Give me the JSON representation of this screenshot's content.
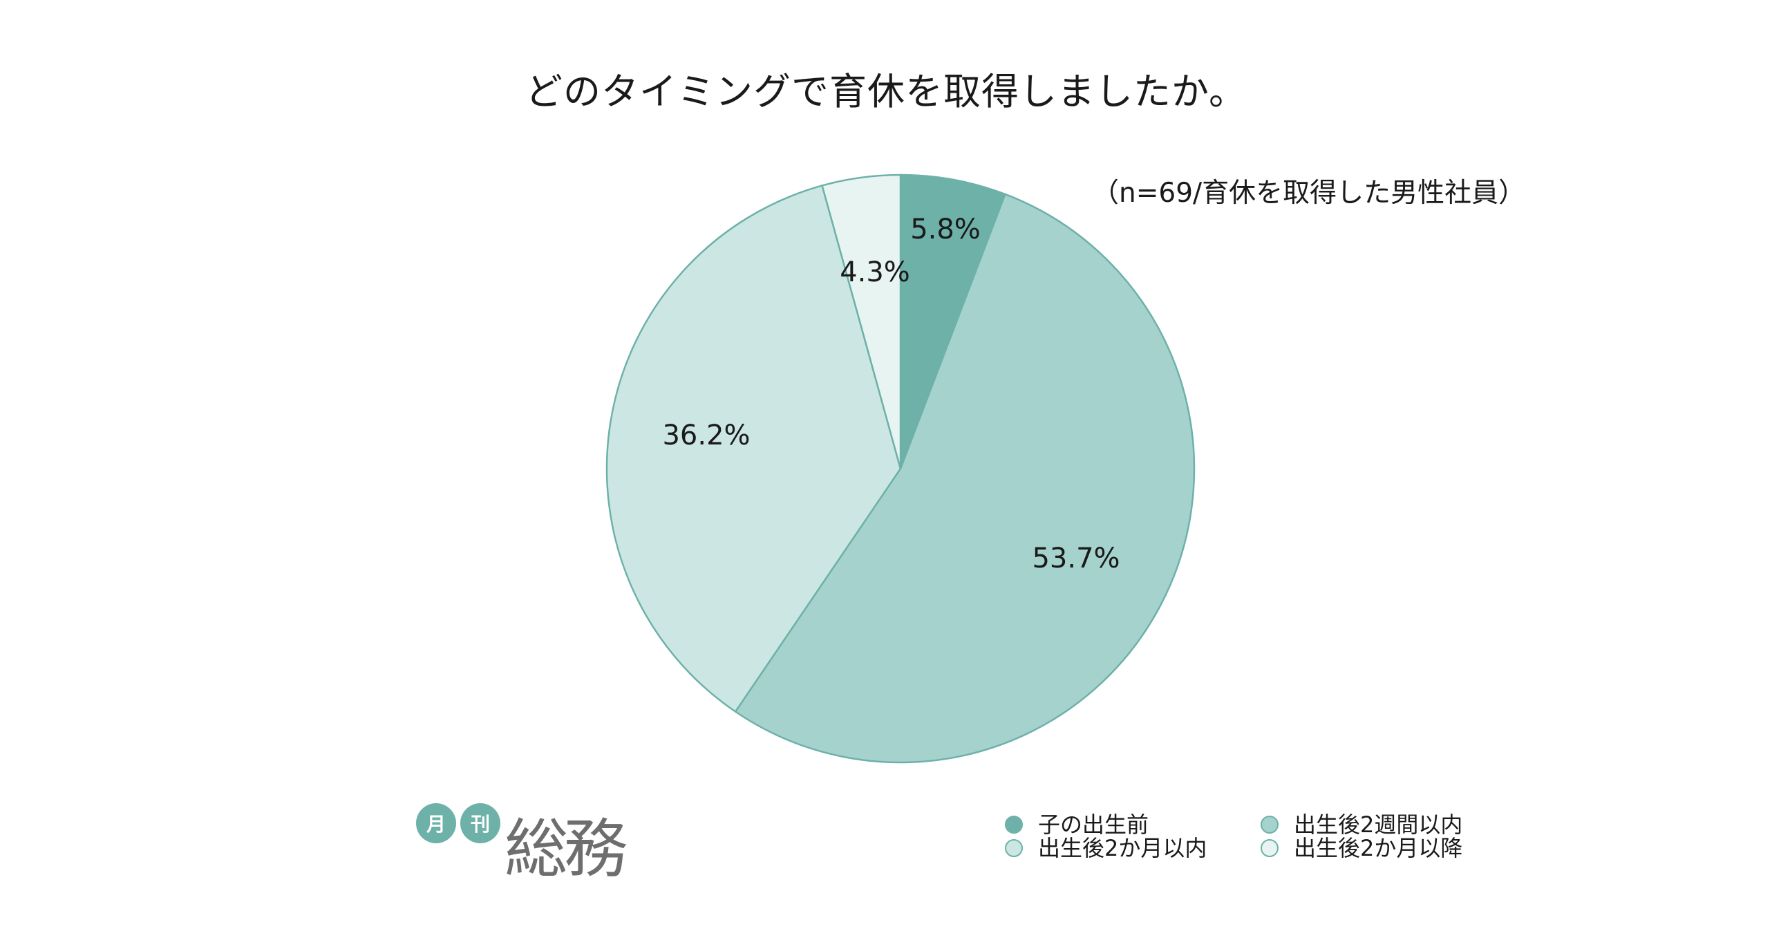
{
  "title": "どのタイミングで育休を取得しましたか。",
  "note": "（n=69/育休を取得した男性社員）",
  "logo": {
    "badge1": "月",
    "badge2": "刊",
    "mark": "総務"
  },
  "colors": {
    "stroke": "#6db1a9"
  },
  "chart_data": {
    "type": "pie",
    "title": "どのタイミングで育休を取得しましたか。",
    "start_angle_deg": 0,
    "direction": "clockwise",
    "slices": [
      {
        "label": "子の出生前",
        "value": 5.8,
        "display": "5.8%",
        "color": "#6db1a9"
      },
      {
        "label": "出生後2週間以内",
        "value": 53.7,
        "display": "53.7%",
        "color": "#a5d2cc"
      },
      {
        "label": "出生後2か月以内",
        "value": 36.2,
        "display": "36.2%",
        "color": "#cce7e3"
      },
      {
        "label": "出生後2か月以降",
        "value": 4.3,
        "display": "4.3%",
        "color": "#e8f4f2"
      }
    ]
  }
}
